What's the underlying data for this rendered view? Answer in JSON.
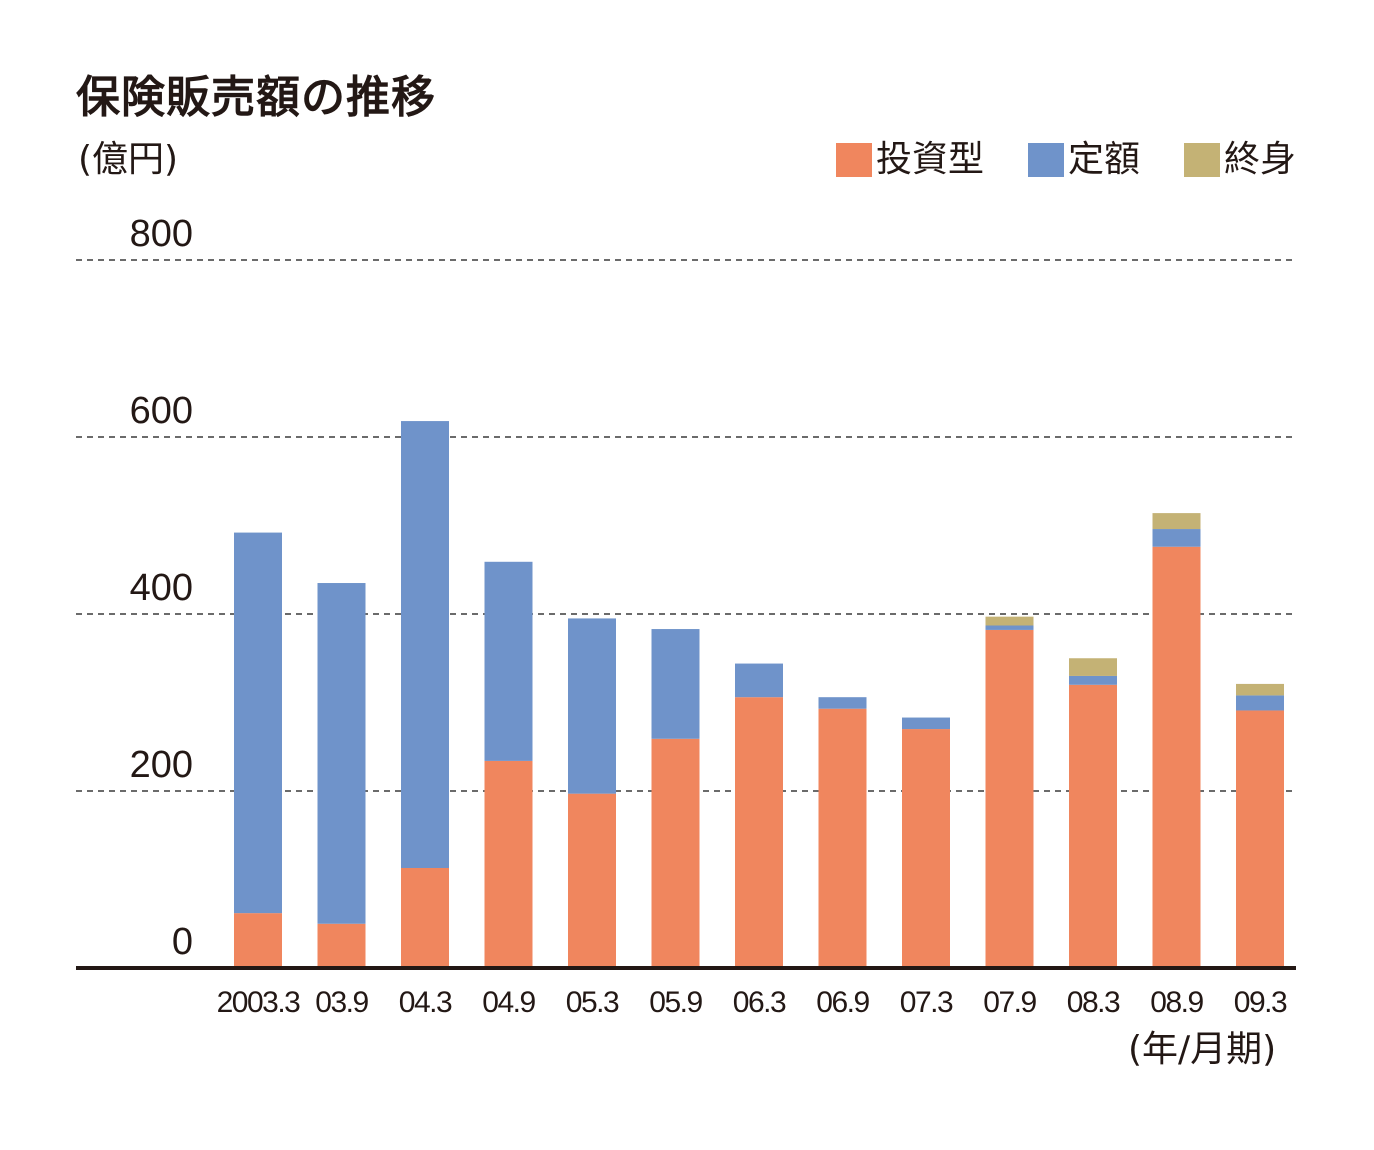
{
  "chart_data": {
    "type": "bar",
    "stacked": true,
    "title": "保険販売額の推移",
    "ylabel": "(億円)",
    "xlabel": "(年/月期)",
    "ylim": [
      0,
      800
    ],
    "yticks": [
      0,
      200,
      400,
      600,
      800
    ],
    "grid": "dashed horizontal",
    "legend_position": "top-right",
    "categories": [
      "2003.3",
      "03.9",
      "04.3",
      "04.9",
      "05.3",
      "05.9",
      "06.3",
      "06.9",
      "07.3",
      "07.9",
      "08.3",
      "08.9",
      "09.3"
    ],
    "series": [
      {
        "name": "投資型",
        "color": "#f0865e",
        "values": [
          62,
          50,
          113,
          234,
          197,
          259,
          306,
          293,
          270,
          382,
          320,
          476,
          291
        ]
      },
      {
        "name": "定額",
        "color": "#6f93ca",
        "values": [
          430,
          385,
          505,
          225,
          198,
          124,
          38,
          13,
          13,
          5,
          10,
          20,
          17
        ]
      },
      {
        "name": "終身",
        "color": "#c4b275",
        "values": [
          0,
          0,
          0,
          0,
          0,
          0,
          0,
          0,
          0,
          10,
          20,
          18,
          13
        ]
      }
    ]
  }
}
